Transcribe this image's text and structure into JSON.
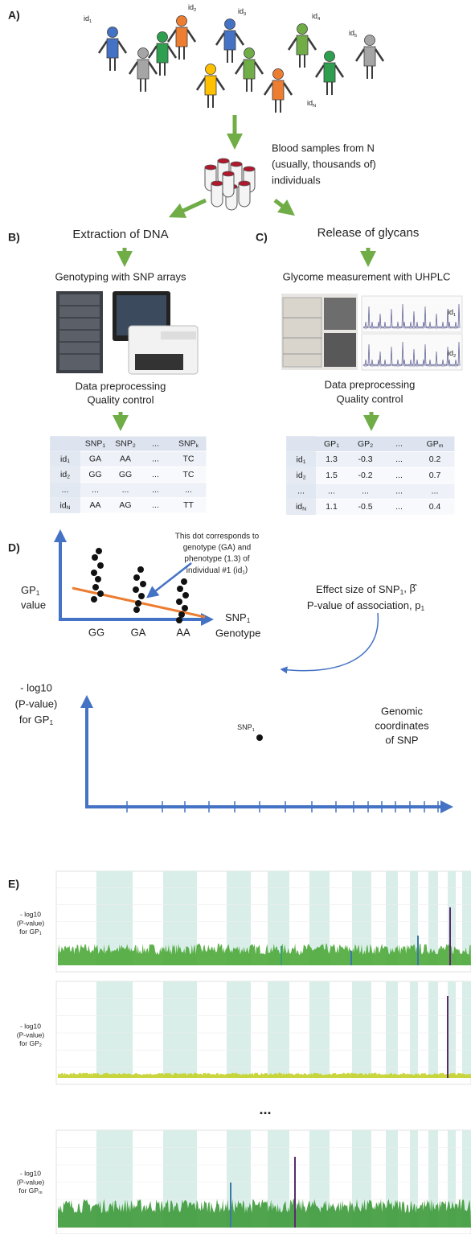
{
  "panel_labels": [
    "A)",
    "B)",
    "C)",
    "D)",
    "E)"
  ],
  "individuals": [
    {
      "t": "id",
      "s": "1"
    },
    {
      "t": "id",
      "s": "2"
    },
    {
      "t": "id",
      "s": "3"
    },
    {
      "t": "id",
      "s": "4"
    },
    {
      "t": "id",
      "s": "5"
    },
    {
      "t": "id",
      "s": "N"
    }
  ],
  "blood_samples": [
    "Blood samples from N",
    "(usually, thousands of)",
    "individuals"
  ],
  "genotyping": {
    "title": "Extraction of DNA",
    "step": "Genotyping with SNP arrays",
    "preprocessing": [
      "Data preprocessing",
      "Quality control"
    ],
    "table": {
      "header": [
        {
          "t": "SNP",
          "s": "1"
        },
        {
          "t": "SNP",
          "s": "2"
        },
        "...",
        {
          "t": "SNP",
          "s": "k"
        }
      ],
      "rows": [
        [
          {
            "t": "id",
            "s": "1"
          },
          "GA",
          "AA",
          "...",
          "TC"
        ],
        [
          {
            "t": "id",
            "s": "2"
          },
          "GG",
          "GG",
          "...",
          "TC"
        ],
        [
          "...",
          "...",
          "...",
          "...",
          "..."
        ],
        [
          {
            "t": "id",
            "s": "N"
          },
          "AA",
          "AG",
          "...",
          "TT"
        ]
      ]
    }
  },
  "glycomics": {
    "title": "Release of glycans",
    "step": "Glycome measurement with UHPLC",
    "chromatogram_labels": [
      {
        "t": "id",
        "s": "1"
      },
      {
        "t": "id",
        "s": "2"
      }
    ],
    "preprocessing": [
      "Data preprocessing",
      "Quality control"
    ],
    "table": {
      "header": [
        {
          "t": "GP",
          "s": "1"
        },
        {
          "t": "GP",
          "s": "2"
        },
        "...",
        {
          "t": "GP",
          "s": "m"
        }
      ],
      "rows": [
        [
          {
            "t": "id",
            "s": "1"
          },
          1.3,
          -0.3,
          "...",
          0.2
        ],
        [
          {
            "t": "id",
            "s": "2"
          },
          1.5,
          -0.2,
          "...",
          0.7
        ],
        [
          "...",
          "...",
          "...",
          "...",
          "..."
        ],
        [
          {
            "t": "id",
            "s": "N"
          },
          1.1,
          -0.5,
          "...",
          0.4
        ]
      ]
    }
  },
  "association": {
    "annotation": [
      "This dot corresponds to",
      "genotype (GA) and",
      "phenotype (1.3) of",
      {
        "t": "individual #1 (id",
        "s": "1",
        "a": ")"
      }
    ],
    "y_label": [
      {
        "t": "GP",
        "s": "1"
      },
      "value"
    ],
    "x_label": [
      {
        "t": "SNP",
        "s": "1"
      },
      "Genotype"
    ],
    "genotypes": [
      "GG",
      "GA",
      "AA"
    ],
    "results": [
      {
        "t": "Effect size of SNP",
        "s": "1",
        "a": ", β̂"
      },
      {
        "t": "P-value of association, p",
        "s": "1"
      }
    ]
  },
  "manhattan_schema": {
    "y_label": [
      "- log10",
      "(P-value)",
      {
        "t": "for GP",
        "s": "1"
      }
    ],
    "point_label": {
      "t": "SNP",
      "s": "1"
    },
    "x_label": [
      "Genomic",
      "coordinates",
      "of SNP"
    ]
  },
  "manhattan_plots": {
    "y_labels": [
      [
        "- log10",
        "(P-value)",
        {
          "t": "for GP",
          "s": "1"
        }
      ],
      [
        "- log10",
        "(P-value)",
        {
          "t": "for GP",
          "s": "2"
        }
      ],
      [
        "- log10",
        "(P-value)",
        {
          "t": "for GP",
          "s": "m"
        }
      ]
    ],
    "ellipsis": "..."
  }
}
